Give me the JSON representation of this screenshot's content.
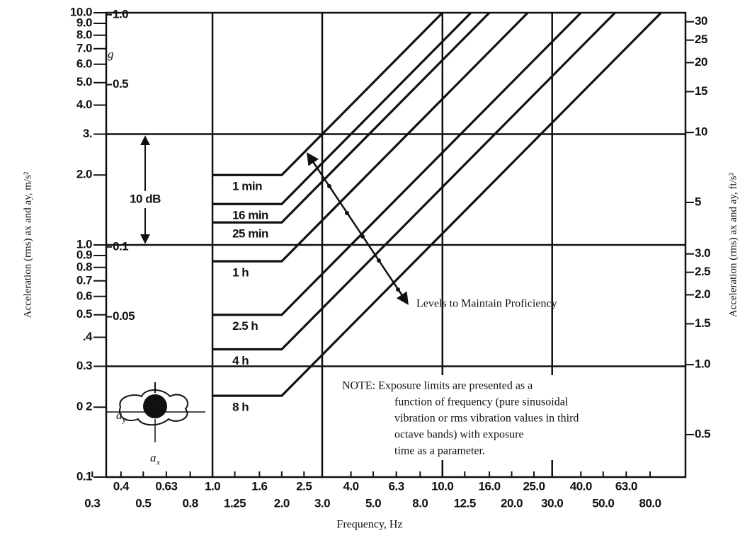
{
  "chart_data": {
    "type": "line",
    "xlabel": "Frequency, Hz",
    "ylabel": "Acceleration (rms) ax and ay, m/s²",
    "y2label": "Acceleration (rms) ax and ay, ft/s²",
    "xlim": [
      0.345,
      114
    ],
    "ylim": [
      0.1,
      10
    ],
    "y2lim": [
      0.328,
      32.8
    ],
    "log_x": true,
    "log_y": true,
    "color": "#111111",
    "xticks": [
      {
        "value": 0.3,
        "label": "0.3"
      },
      {
        "value": 0.4,
        "label": "0.4"
      },
      {
        "value": 0.5,
        "label": "0.5"
      },
      {
        "value": 0.63,
        "label": "0.63"
      },
      {
        "value": 0.8,
        "label": "0.8"
      },
      {
        "value": 1,
        "label": "1.0"
      },
      {
        "value": 1.25,
        "label": "1.25"
      },
      {
        "value": 1.6,
        "label": "1.6"
      },
      {
        "value": 2,
        "label": "2.0"
      },
      {
        "value": 2.5,
        "label": "2.5"
      },
      {
        "value": 3,
        "label": "3.0"
      },
      {
        "value": 4,
        "label": "4.0"
      },
      {
        "value": 5,
        "label": "5.0"
      },
      {
        "value": 6.3,
        "label": "6.3"
      },
      {
        "value": 8,
        "label": "8.0"
      },
      {
        "value": 10,
        "label": "10.0"
      },
      {
        "value": 12.5,
        "label": "12.5"
      },
      {
        "value": 16,
        "label": "16.0"
      },
      {
        "value": 20,
        "label": "20.0"
      },
      {
        "value": 25,
        "label": "25.0"
      },
      {
        "value": 30,
        "label": "30.0"
      },
      {
        "value": 40,
        "label": "40.0"
      },
      {
        "value": 50,
        "label": "50.0"
      },
      {
        "value": 63,
        "label": "63.0"
      },
      {
        "value": 80,
        "label": "80.0"
      }
    ],
    "yticks": [
      {
        "value": 10,
        "label": "10.0"
      },
      {
        "value": 9,
        "label": "9.0"
      },
      {
        "value": 8,
        "label": "8.0"
      },
      {
        "value": 7,
        "label": "7.0"
      },
      {
        "value": 6,
        "label": "6.0"
      },
      {
        "value": 5,
        "label": "5.0"
      },
      {
        "value": 4,
        "label": "4.0"
      },
      {
        "value": 3,
        "label": "3."
      },
      {
        "value": 2,
        "label": "2.0"
      },
      {
        "value": 1,
        "label": "1.0"
      },
      {
        "value": 0.9,
        "label": "0.9"
      },
      {
        "value": 0.8,
        "label": "0.8"
      },
      {
        "value": 0.7,
        "label": "0.7"
      },
      {
        "value": 0.6,
        "label": "0.6"
      },
      0.5,
      {
        "value": 0.4,
        "label": ".4"
      },
      0.3,
      {
        "value": 0.2,
        "label": "0 2"
      },
      0.1
    ],
    "y2ticks": [
      30,
      25,
      20,
      15,
      10,
      5,
      {
        "value": 3,
        "label": "3.0"
      },
      2.5,
      {
        "value": 2,
        "label": "2.0"
      },
      1.5,
      {
        "value": 1,
        "label": "1.0"
      },
      0.5
    ],
    "g_axis": {
      "label": "g",
      "lim": [
        0.0102,
        1.02
      ],
      "ticks": [
        {
          "value": 1,
          "label": "1.0"
        },
        0.5,
        0.1,
        0.05
      ]
    },
    "grid_x": [
      1,
      3,
      10,
      30
    ],
    "grid_y": [
      3,
      1,
      0.3
    ],
    "series": [
      {
        "name": "1 min",
        "x": [
          1,
          2,
          10
        ],
        "values": [
          2.0,
          2.0,
          10
        ]
      },
      {
        "name": "16 min",
        "x": [
          1,
          2,
          13.3
        ],
        "values": [
          1.5,
          1.5,
          10
        ]
      },
      {
        "name": "25 min",
        "x": [
          1,
          2,
          16
        ],
        "values": [
          1.25,
          1.25,
          10
        ]
      },
      {
        "name": "1 h",
        "x": [
          1,
          2,
          23.5
        ],
        "values": [
          0.85,
          0.85,
          10
        ]
      },
      {
        "name": "2.5 h",
        "x": [
          1,
          2,
          40
        ],
        "values": [
          0.5,
          0.5,
          10
        ]
      },
      {
        "name": "4 h",
        "x": [
          1,
          2,
          56.3
        ],
        "values": [
          0.355,
          0.355,
          10
        ]
      },
      {
        "name": "8 h",
        "x": [
          1,
          2,
          89.3
        ],
        "values": [
          0.224,
          0.224,
          10
        ]
      }
    ],
    "annotations": {
      "db": "10 dB",
      "proficiency": "Levels to Maintain Proficiency",
      "note": [
        "NOTE:  Exposure limits are presented as a",
        "function of frequency (pure sinusoidal",
        "vibration or rms vibration values in third",
        "octave bands) with exposure",
        "time as a parameter."
      ],
      "icon_labels": [
        {
          "base": "a",
          "sub": "y"
        },
        {
          "base": "a",
          "sub": "x"
        }
      ]
    }
  }
}
